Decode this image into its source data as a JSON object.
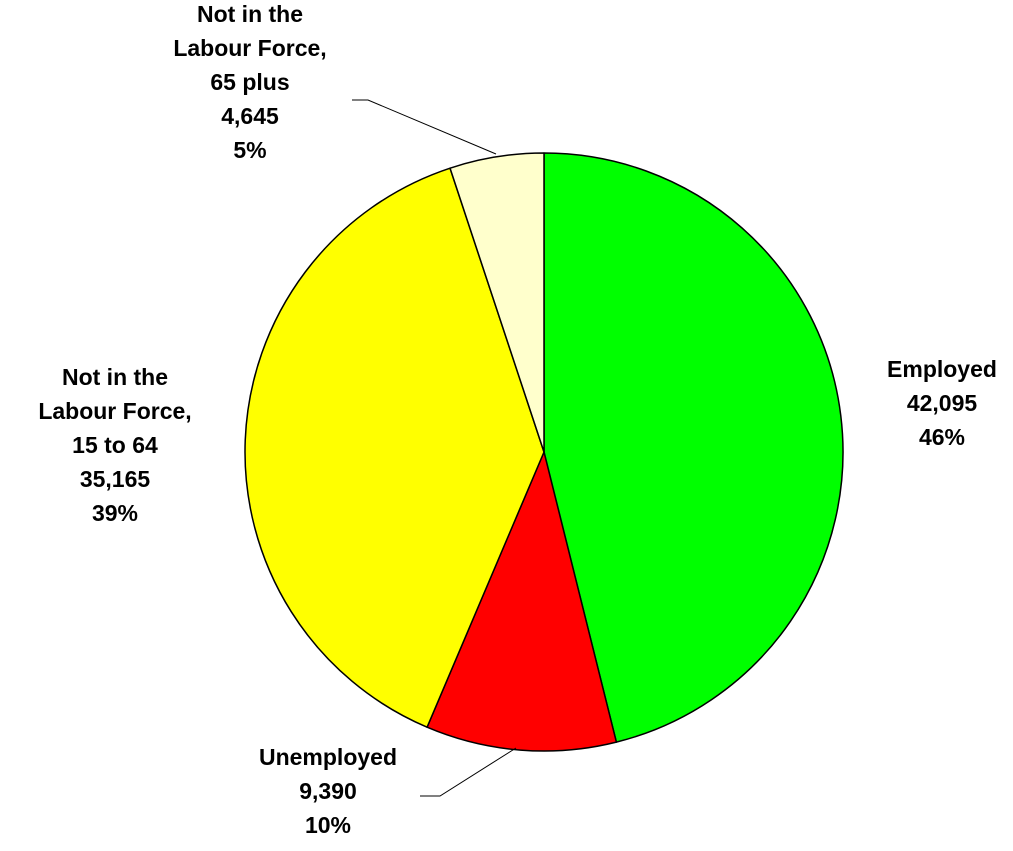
{
  "chart_data": {
    "type": "pie",
    "title": "",
    "slices": [
      {
        "label_lines": [
          "Employed"
        ],
        "value": 42095,
        "value_text": "42,095",
        "percent_text": "46%",
        "color": "#00ff00"
      },
      {
        "label_lines": [
          "Unemployed"
        ],
        "value": 9390,
        "value_text": "9,390",
        "percent_text": "10%",
        "color": "#ff0000"
      },
      {
        "label_lines": [
          "Not in the",
          "Labour Force,",
          "15 to 64"
        ],
        "value": 35165,
        "value_text": "35,165",
        "percent_text": "39%",
        "color": "#ffff00"
      },
      {
        "label_lines": [
          "Not in the",
          "Labour Force,",
          "65 plus"
        ],
        "value": 4645,
        "value_text": "4,645",
        "percent_text": "5%",
        "color": "#ffffcc"
      }
    ]
  }
}
